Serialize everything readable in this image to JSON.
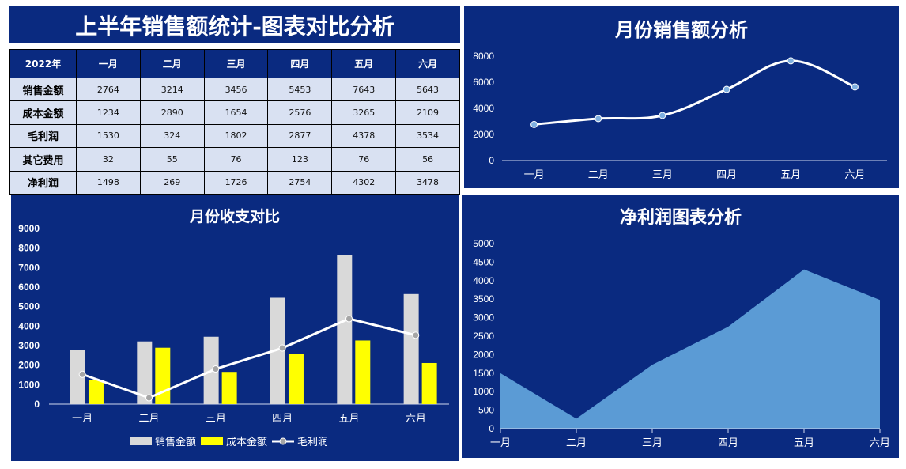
{
  "summary": {
    "title": "上半年销售额统计-图表对比分析",
    "table": {
      "year_label": "2022年",
      "months": [
        "一月",
        "二月",
        "三月",
        "四月",
        "五月",
        "六月"
      ],
      "rows": [
        {
          "label": "销售金额",
          "values": [
            "2764",
            "3214",
            "3456",
            "5453",
            "7643",
            "5643"
          ]
        },
        {
          "label": "成本金额",
          "values": [
            "1234",
            "2890",
            "1654",
            "2576",
            "3265",
            "2109"
          ]
        },
        {
          "label": "毛利润",
          "values": [
            "1530",
            "324",
            "1802",
            "2877",
            "4378",
            "3534"
          ]
        },
        {
          "label": "其它费用",
          "values": [
            "32",
            "55",
            "76",
            "123",
            "76",
            "56"
          ]
        },
        {
          "label": "净利润",
          "values": [
            "1498",
            "269",
            "1726",
            "2754",
            "4302",
            "3478"
          ]
        }
      ]
    }
  },
  "chart_data": [
    {
      "id": "sales",
      "type": "line",
      "title": "月份销售额分析",
      "categories": [
        "一月",
        "二月",
        "三月",
        "四月",
        "五月",
        "六月"
      ],
      "series": [
        {
          "values": [
            2764,
            3214,
            3456,
            5453,
            7643,
            5643
          ],
          "color": "#ffffff",
          "marker_color": "#7fb0e0"
        }
      ],
      "ylim": [
        0,
        8000
      ],
      "yticks": [
        0,
        2000,
        4000,
        6000,
        8000
      ],
      "smooth": true,
      "grid": false
    },
    {
      "id": "combo",
      "type": "bar",
      "title": "月份收支对比",
      "categories": [
        "一月",
        "二月",
        "三月",
        "四月",
        "五月",
        "六月"
      ],
      "series": [
        {
          "name": "销售金额",
          "type": "bar",
          "color": "#d9d9d9",
          "values": [
            2764,
            3214,
            3456,
            5453,
            7643,
            5643
          ]
        },
        {
          "name": "成本金额",
          "type": "bar",
          "color": "#ffff00",
          "values": [
            1234,
            2890,
            1654,
            2576,
            3265,
            2109
          ]
        },
        {
          "name": "毛利润",
          "type": "line",
          "color": "#ffffff",
          "marker_color": "#a6a6a6",
          "values": [
            1530,
            324,
            1802,
            2877,
            4378,
            3534
          ]
        }
      ],
      "ylim": [
        0,
        9000
      ],
      "yticks": [
        0,
        1000,
        2000,
        3000,
        4000,
        5000,
        6000,
        7000,
        8000,
        9000
      ],
      "legend": "bottom",
      "grid": false
    },
    {
      "id": "profit",
      "type": "area",
      "title": "净利润图表分析",
      "categories": [
        "一月",
        "二月",
        "三月",
        "四月",
        "五月",
        "六月"
      ],
      "series": [
        {
          "values": [
            1498,
            269,
            1726,
            2754,
            4302,
            3478
          ],
          "color": "#5b9bd5"
        }
      ],
      "ylim": [
        0,
        5000
      ],
      "yticks": [
        0,
        500,
        1000,
        1500,
        2000,
        2500,
        3000,
        3500,
        4000,
        4500,
        5000
      ],
      "grid": false
    }
  ]
}
